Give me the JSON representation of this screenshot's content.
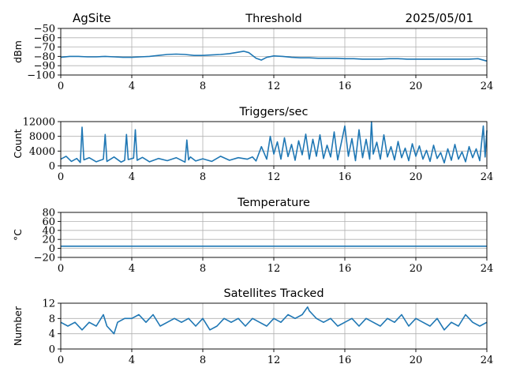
{
  "header": {
    "site": "AgSite",
    "date": "2025/05/01"
  },
  "colors": {
    "series": "#1f77b4",
    "grid": "#b0b0b0",
    "axis": "#000000"
  },
  "chart_data": [
    {
      "type": "line",
      "title": "Threshold",
      "ylabel": "dBm",
      "xlim": [
        0,
        24
      ],
      "ylim": [
        -100,
        -50
      ],
      "xticks": [
        0,
        4,
        8,
        12,
        16,
        20,
        24
      ],
      "yticks": [
        -100,
        -90,
        -80,
        -70,
        -60,
        -50
      ],
      "ytick_labels": [
        "−100",
        "−90",
        "−80",
        "−70",
        "−60",
        "−50"
      ],
      "grid": true,
      "series": [
        {
          "x": [
            0,
            0.5,
            1,
            1.5,
            2,
            2.5,
            3,
            3.5,
            4,
            4.5,
            5,
            5.5,
            6,
            6.5,
            7,
            7.5,
            8,
            8.5,
            9,
            9.5,
            10,
            10.3,
            10.6,
            11,
            11.3,
            11.6,
            12,
            12.5,
            13,
            13.5,
            14,
            14.5,
            15,
            15.5,
            16,
            16.5,
            17,
            17.5,
            18,
            18.5,
            19,
            19.5,
            20,
            20.5,
            21,
            21.5,
            22,
            22.5,
            23,
            23.5,
            24
          ],
          "y": [
            -81,
            -80,
            -80,
            -80.5,
            -80.5,
            -80,
            -80.5,
            -81,
            -81,
            -80.5,
            -80,
            -79,
            -78,
            -77.5,
            -78,
            -79,
            -79,
            -78.5,
            -78,
            -77,
            -75.5,
            -74.5,
            -76,
            -82,
            -84,
            -81,
            -79.5,
            -80,
            -81,
            -81.5,
            -81.5,
            -82,
            -82,
            -82,
            -82.5,
            -82.5,
            -83,
            -83,
            -83,
            -82.5,
            -82.5,
            -83,
            -83,
            -83,
            -83,
            -83,
            -83,
            -83,
            -83,
            -82.5,
            -85
          ]
        }
      ]
    },
    {
      "type": "line",
      "title": "Triggers/sec",
      "ylabel": "Count",
      "xlim": [
        0,
        24
      ],
      "ylim": [
        0,
        12000
      ],
      "xticks": [
        0,
        4,
        8,
        12,
        16,
        20,
        24
      ],
      "yticks": [
        0,
        4000,
        8000,
        12000
      ],
      "ytick_labels": [
        "0",
        "4000",
        "8000",
        "12000"
      ],
      "grid": true,
      "series": [
        {
          "x": [
            0,
            0.3,
            0.6,
            0.9,
            1.1,
            1.2,
            1.3,
            1.6,
            2.0,
            2.4,
            2.5,
            2.6,
            3.0,
            3.4,
            3.6,
            3.7,
            3.8,
            4.1,
            4.2,
            4.3,
            4.6,
            5.0,
            5.5,
            6.0,
            6.5,
            7.0,
            7.1,
            7.2,
            7.3,
            7.6,
            8.0,
            8.5,
            9.0,
            9.5,
            10.0,
            10.5,
            10.8,
            11.0,
            11.3,
            11.6,
            11.8,
            12.0,
            12.2,
            12.4,
            12.6,
            12.8,
            13.0,
            13.2,
            13.4,
            13.6,
            13.8,
            14.0,
            14.2,
            14.4,
            14.6,
            14.8,
            15.0,
            15.2,
            15.4,
            15.6,
            15.8,
            16.0,
            16.2,
            16.4,
            16.6,
            16.8,
            17.0,
            17.2,
            17.4,
            17.5,
            17.6,
            17.8,
            18.0,
            18.2,
            18.4,
            18.6,
            18.8,
            19.0,
            19.2,
            19.4,
            19.6,
            19.8,
            20.0,
            20.2,
            20.4,
            20.6,
            20.8,
            21.0,
            21.2,
            21.4,
            21.6,
            21.8,
            22.0,
            22.2,
            22.4,
            22.6,
            22.8,
            23.0,
            23.2,
            23.4,
            23.6,
            23.8,
            23.9,
            24.0
          ],
          "y": [
            1800,
            2600,
            1200,
            2000,
            900,
            10500,
            1600,
            2200,
            1100,
            1800,
            8500,
            1200,
            2400,
            1000,
            1500,
            8500,
            1700,
            2100,
            9800,
            1500,
            2300,
            1100,
            2000,
            1400,
            2200,
            1000,
            7000,
            1600,
            2400,
            1300,
            1900,
            1200,
            2600,
            1500,
            2200,
            1800,
            2400,
            1300,
            5200,
            1800,
            8000,
            3200,
            6500,
            1800,
            7600,
            2500,
            5800,
            1500,
            6800,
            3000,
            8600,
            1800,
            7200,
            2600,
            8400,
            2000,
            5600,
            2400,
            9200,
            1600,
            6200,
            10800,
            2600,
            7400,
            1400,
            9800,
            2200,
            7200,
            1800,
            12000,
            3200,
            6400,
            1800,
            8400,
            2400,
            5200,
            1600,
            6600,
            2200,
            4800,
            1400,
            6000,
            2600,
            5400,
            1800,
            4200,
            1200,
            5600,
            2000,
            3600,
            800,
            4600,
            1500,
            5800,
            1800,
            3800,
            1100,
            5200,
            2200,
            4600,
            1400,
            10800,
            2400,
            9600
          ]
        }
      ]
    },
    {
      "type": "line",
      "title": "Temperature",
      "ylabel": "°C",
      "xlim": [
        0,
        24
      ],
      "ylim": [
        -20,
        80
      ],
      "xticks": [
        0,
        4,
        8,
        12,
        16,
        20,
        24
      ],
      "yticks": [
        -20,
        0,
        20,
        40,
        60,
        80
      ],
      "ytick_labels": [
        "−20",
        "0",
        "20",
        "40",
        "60",
        "80"
      ],
      "grid": true,
      "series": [
        {
          "x": [
            0,
            24
          ],
          "y": [
            5,
            5
          ]
        }
      ]
    },
    {
      "type": "line",
      "title": "Satellites Tracked",
      "ylabel": "Number",
      "xlim": [
        0,
        24
      ],
      "ylim": [
        0,
        12
      ],
      "xticks": [
        0,
        4,
        8,
        12,
        16,
        20,
        24
      ],
      "yticks": [
        0,
        4,
        8,
        12
      ],
      "ytick_labels": [
        "0",
        "4",
        "8",
        "12"
      ],
      "grid": true,
      "series": [
        {
          "x": [
            0,
            0.4,
            0.8,
            1.2,
            1.6,
            2.0,
            2.4,
            2.6,
            2.8,
            3.0,
            3.2,
            3.6,
            4.0,
            4.4,
            4.8,
            5.2,
            5.6,
            6.0,
            6.4,
            6.8,
            7.2,
            7.6,
            8.0,
            8.4,
            8.8,
            9.2,
            9.6,
            10.0,
            10.4,
            10.8,
            11.2,
            11.6,
            12.0,
            12.4,
            12.8,
            13.2,
            13.6,
            13.9,
            14.0,
            14.2,
            14.4,
            14.8,
            15.2,
            15.6,
            16.0,
            16.4,
            16.8,
            17.2,
            17.6,
            18.0,
            18.4,
            18.8,
            19.2,
            19.6,
            20.0,
            20.4,
            20.8,
            21.2,
            21.6,
            22.0,
            22.4,
            22.8,
            23.2,
            23.6,
            24.0
          ],
          "y": [
            7,
            6,
            7,
            5,
            7,
            6,
            9,
            6,
            5,
            4,
            7,
            8,
            8,
            9,
            7,
            9,
            6,
            7,
            8,
            7,
            8,
            6,
            8,
            5,
            6,
            8,
            7,
            8,
            6,
            8,
            7,
            6,
            8,
            7,
            9,
            8,
            9,
            11,
            10,
            9,
            8,
            7,
            8,
            6,
            7,
            8,
            6,
            8,
            7,
            6,
            8,
            7,
            9,
            6,
            8,
            7,
            6,
            8,
            5,
            7,
            6,
            9,
            7,
            6,
            7
          ]
        }
      ]
    }
  ]
}
